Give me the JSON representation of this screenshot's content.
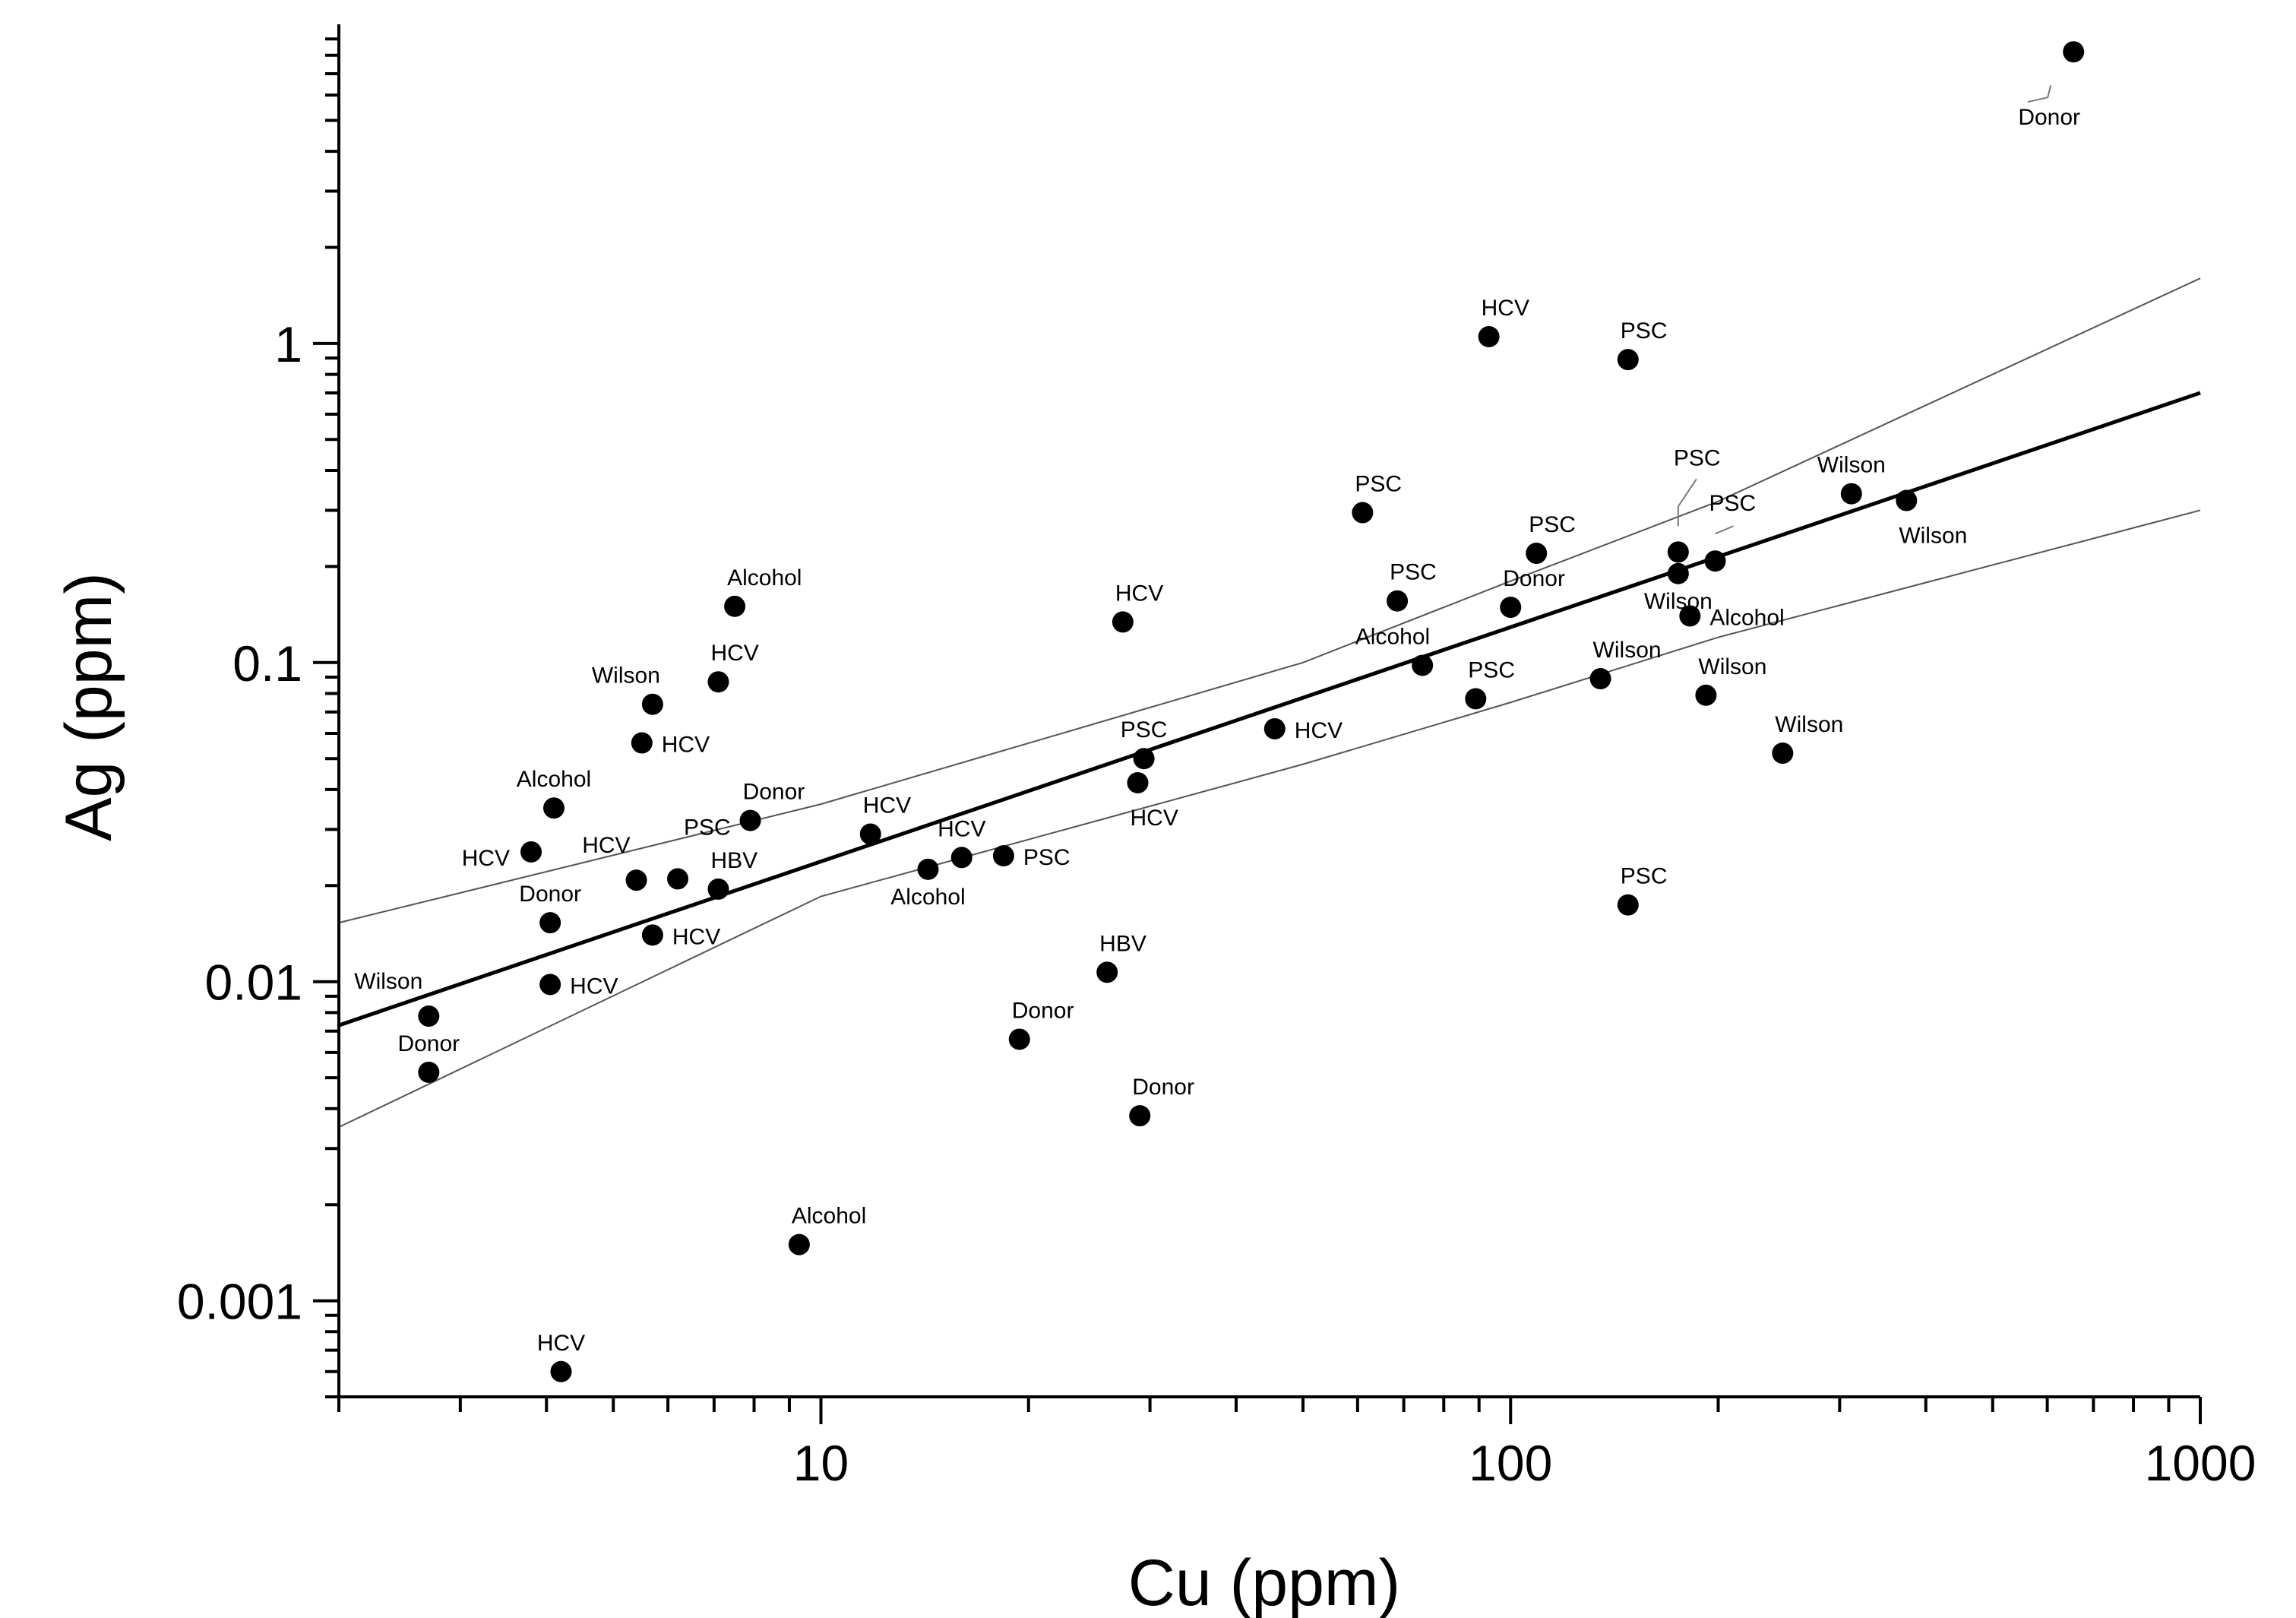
{
  "chart_data": {
    "type": "scatter",
    "xscale": "log",
    "yscale": "log",
    "xlabel": "Cu (ppm)",
    "ylabel": "Ag (ppm)",
    "xlim": [
      2,
      1000
    ],
    "ylim": [
      0.0005,
      10
    ],
    "xticks": [
      {
        "value": 10,
        "label": "10"
      },
      {
        "value": 100,
        "label": "100"
      },
      {
        "value": 1000,
        "label": "1000"
      }
    ],
    "yticks": [
      {
        "value": 0.001,
        "label": "0.001"
      },
      {
        "value": 0.01,
        "label": "0.01"
      },
      {
        "value": 0.1,
        "label": "0.1"
      },
      {
        "value": 1,
        "label": "1"
      }
    ],
    "regression": {
      "fit": {
        "x": [
          2,
          1000
        ],
        "y": [
          0.0073,
          0.7
        ]
      },
      "upper_band": {
        "x": [
          2,
          10,
          50,
          100,
          200,
          1000
        ],
        "y": [
          0.0153,
          0.036,
          0.1,
          0.18,
          0.32,
          1.6
        ]
      },
      "lower_band": {
        "x": [
          2,
          10,
          50,
          100,
          200,
          1000
        ],
        "y": [
          0.0035,
          0.0185,
          0.048,
          0.075,
          0.12,
          0.3
        ]
      }
    },
    "points": [
      {
        "x": 2.7,
        "y": 0.0078,
        "label": "Wilson",
        "pos": "upper-left"
      },
      {
        "x": 2.7,
        "y": 0.0052,
        "label": "Donor",
        "pos": "above"
      },
      {
        "x": 3.8,
        "y": 0.0255,
        "label": "HCV",
        "pos": "left"
      },
      {
        "x": 4.1,
        "y": 0.035,
        "label": "Alcohol",
        "pos": "above"
      },
      {
        "x": 4.05,
        "y": 0.0153,
        "label": "Donor",
        "pos": "above"
      },
      {
        "x": 4.05,
        "y": 0.0098,
        "label": "HCV",
        "pos": "right"
      },
      {
        "x": 4.2,
        "y": 0.0006,
        "label": "HCV",
        "pos": "above"
      },
      {
        "x": 5.4,
        "y": 0.0208,
        "label": "HCV",
        "pos": "upper-left"
      },
      {
        "x": 5.5,
        "y": 0.056,
        "label": "HCV",
        "pos": "right"
      },
      {
        "x": 5.7,
        "y": 0.074,
        "label": "Wilson",
        "pos": "above-left"
      },
      {
        "x": 5.7,
        "y": 0.014,
        "label": "HCV",
        "pos": "right"
      },
      {
        "x": 6.2,
        "y": 0.021,
        "label": "PSC",
        "pos": "upper-right"
      },
      {
        "x": 7.1,
        "y": 0.087,
        "label": "HCV",
        "pos": "above-right"
      },
      {
        "x": 7.1,
        "y": 0.0195,
        "label": "HBV",
        "pos": "above-right"
      },
      {
        "x": 7.5,
        "y": 0.15,
        "label": "Alcohol",
        "pos": "above-right"
      },
      {
        "x": 7.9,
        "y": 0.032,
        "label": "Donor",
        "pos": "above-right"
      },
      {
        "x": 9.3,
        "y": 0.0015,
        "label": "Alcohol",
        "pos": "above-right"
      },
      {
        "x": 11.8,
        "y": 0.029,
        "label": "HCV",
        "pos": "above-right"
      },
      {
        "x": 14.3,
        "y": 0.0225,
        "label": "Alcohol",
        "pos": "below"
      },
      {
        "x": 16,
        "y": 0.0245,
        "label": "HCV",
        "pos": "above"
      },
      {
        "x": 18.4,
        "y": 0.0248,
        "label": "PSC",
        "pos": "right"
      },
      {
        "x": 19.4,
        "y": 0.0066,
        "label": "Donor",
        "pos": "above-right"
      },
      {
        "x": 26,
        "y": 0.0107,
        "label": "HBV",
        "pos": "above-right"
      },
      {
        "x": 27.4,
        "y": 0.134,
        "label": "HCV",
        "pos": "above-right"
      },
      {
        "x": 28.8,
        "y": 0.042,
        "label": "HCV",
        "pos": "below-right"
      },
      {
        "x": 29,
        "y": 0.0038,
        "label": "Donor",
        "pos": "above-right"
      },
      {
        "x": 29.4,
        "y": 0.05,
        "label": "PSC",
        "pos": "above"
      },
      {
        "x": 45.5,
        "y": 0.062,
        "label": "HCV",
        "pos": "right"
      },
      {
        "x": 61,
        "y": 0.295,
        "label": "PSC",
        "pos": "above-right"
      },
      {
        "x": 68.5,
        "y": 0.156,
        "label": "PSC",
        "pos": "above-right"
      },
      {
        "x": 74.5,
        "y": 0.098,
        "label": "Alcohol",
        "pos": "above-left"
      },
      {
        "x": 89,
        "y": 0.077,
        "label": "PSC",
        "pos": "above-right"
      },
      {
        "x": 93,
        "y": 1.05,
        "label": "HCV",
        "pos": "above-right"
      },
      {
        "x": 100,
        "y": 0.149,
        "label": "Donor",
        "pos": "above-right"
      },
      {
        "x": 109,
        "y": 0.22,
        "label": "PSC",
        "pos": "above-right"
      },
      {
        "x": 135,
        "y": 0.089,
        "label": "Wilson",
        "pos": "above-right"
      },
      {
        "x": 148,
        "y": 0.89,
        "label": "PSC",
        "pos": "above-right"
      },
      {
        "x": 148,
        "y": 0.0174,
        "label": "PSC",
        "pos": "above-right"
      },
      {
        "x": 175,
        "y": 0.222,
        "label": "PSC",
        "pos": "leader-up"
      },
      {
        "x": 175,
        "y": 0.19,
        "label": "Wilson",
        "pos": "below"
      },
      {
        "x": 182,
        "y": 0.14,
        "label": "Alcohol",
        "pos": "right"
      },
      {
        "x": 192,
        "y": 0.079,
        "label": "Wilson",
        "pos": "above-right"
      },
      {
        "x": 198,
        "y": 0.208,
        "label": "PSC",
        "pos": "leader-upper-right"
      },
      {
        "x": 248,
        "y": 0.052,
        "label": "Wilson",
        "pos": "above-right"
      },
      {
        "x": 312,
        "y": 0.338,
        "label": "Wilson",
        "pos": "above"
      },
      {
        "x": 375,
        "y": 0.322,
        "label": "Wilson",
        "pos": "below-right"
      },
      {
        "x": 655,
        "y": 8.2,
        "label": "Donor",
        "pos": "leader-below-left"
      }
    ]
  }
}
